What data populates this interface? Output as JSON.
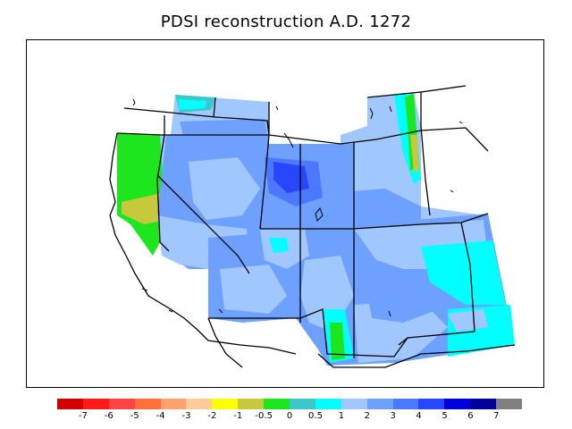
{
  "title": "PDSI reconstruction A.D. 1272",
  "legend": {
    "colors": [
      "#d10000",
      "#ff1a1a",
      "#ff4444",
      "#ff6f3a",
      "#ffa070",
      "#ffcc99",
      "#ffff00",
      "#c8c83c",
      "#1ee61e",
      "#3cc8c8",
      "#00ffff",
      "#a0c8ff",
      "#6ea0ff",
      "#4a78ff",
      "#2846ff",
      "#0000dc",
      "#00009a",
      "#808080"
    ],
    "ticks": [
      "-7",
      "-6",
      "-5",
      "-4",
      "-3",
      "-2",
      "-1",
      "-0.5",
      "0",
      "0.5",
      "1",
      "2",
      "3",
      "4",
      "5",
      "6",
      "7"
    ]
  },
  "map": {
    "region": "southwestern United States",
    "boundaries": "state borders and coastline drawn in black"
  }
}
